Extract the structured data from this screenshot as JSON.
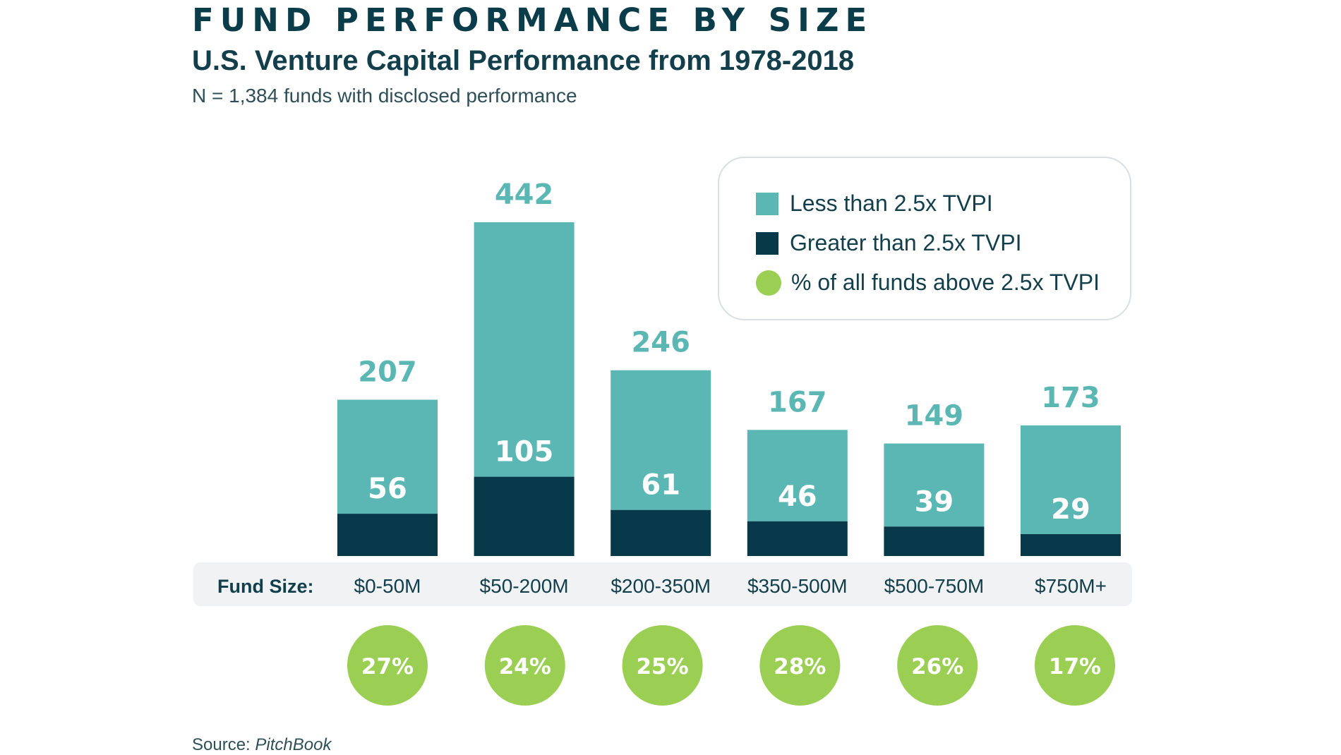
{
  "header": {
    "title": "FUND PERFORMANCE BY SIZE",
    "subtitle": "U.S. Venture Capital Performance from 1978-2018",
    "note": "N = 1,384 funds with disclosed performance"
  },
  "legend": {
    "items": [
      {
        "label": "Less than 2.5x TVPI",
        "color": "#5bb7b3",
        "icon": "square"
      },
      {
        "label": "Greater than 2.5x TVPI",
        "color": "#07394a",
        "icon": "square"
      },
      {
        "label": "% of all funds above 2.5x TVPI",
        "color": "#9bcf53",
        "icon": "circle"
      }
    ]
  },
  "axis": {
    "category_label": "Fund Size:"
  },
  "source": {
    "prefix": "Source: ",
    "name": "PitchBook"
  },
  "colors": {
    "light": "#5bb7b3",
    "dark": "#07394a",
    "green": "#9bcf53",
    "band": "#f0f2f3"
  },
  "chart_data": {
    "type": "bar",
    "stacked": true,
    "categories": [
      "$0-50M",
      "$50-200M",
      "$200-350M",
      "$350-500M",
      "$500-750M",
      "$750M+"
    ],
    "totals": [
      207,
      442,
      246,
      167,
      149,
      173
    ],
    "series": [
      {
        "name": "Greater than 2.5x TVPI",
        "values": [
          56,
          105,
          61,
          46,
          39,
          29
        ]
      },
      {
        "name": "Less than 2.5x TVPI",
        "values": [
          151,
          337,
          185,
          121,
          110,
          144
        ]
      }
    ],
    "percent_above": [
      "27%",
      "24%",
      "25%",
      "28%",
      "26%",
      "17%"
    ],
    "ylim": [
      0,
      442
    ],
    "grid": false,
    "legend_position": "top-right"
  }
}
